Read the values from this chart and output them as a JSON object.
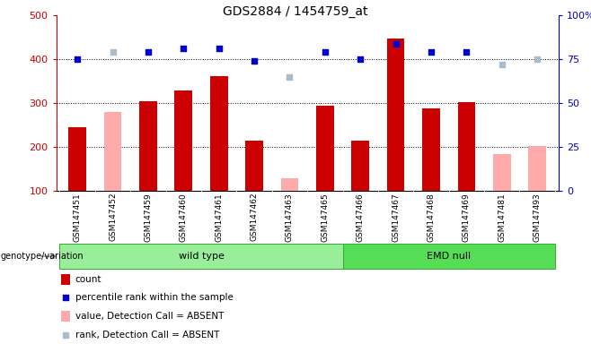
{
  "title": "GDS2884 / 1454759_at",
  "samples": [
    "GSM147451",
    "GSM147452",
    "GSM147459",
    "GSM147460",
    "GSM147461",
    "GSM147462",
    "GSM147463",
    "GSM147465",
    "GSM147466",
    "GSM147467",
    "GSM147468",
    "GSM147469",
    "GSM147481",
    "GSM147493"
  ],
  "count_values": [
    245,
    null,
    305,
    330,
    362,
    215,
    null,
    295,
    215,
    447,
    288,
    302,
    null,
    null
  ],
  "count_absent": [
    null,
    280,
    null,
    null,
    null,
    null,
    128,
    null,
    null,
    null,
    null,
    null,
    183,
    202
  ],
  "percentile_rank": [
    75,
    null,
    79,
    81,
    81,
    74,
    null,
    79,
    75,
    84,
    79,
    79,
    null,
    null
  ],
  "rank_absent": [
    null,
    79,
    null,
    null,
    null,
    null,
    65,
    null,
    null,
    null,
    null,
    null,
    72,
    75
  ],
  "group_wt_indices": [
    0,
    7
  ],
  "group_emd_indices": [
    8,
    13
  ],
  "ylim_left": [
    100,
    500
  ],
  "ylim_right": [
    0,
    100
  ],
  "yticks_left": [
    100,
    200,
    300,
    400,
    500
  ],
  "yticks_right": [
    0,
    25,
    50,
    75,
    100
  ],
  "left_color": "#cc0000",
  "right_color": "#0000cc",
  "bar_width": 0.5,
  "count_color": "#cc0000",
  "count_absent_color": "#ffaaaa",
  "rank_color": "#0000cc",
  "rank_absent_color": "#aabbcc",
  "bg_gray": "#cccccc",
  "wt_color": "#99ee99",
  "emd_color": "#55dd55",
  "grid_dotted": [
    200,
    300,
    400
  ],
  "legend_items": [
    {
      "label": "count",
      "color": "#cc0000",
      "type": "rect"
    },
    {
      "label": "percentile rank within the sample",
      "color": "#0000cc",
      "type": "square"
    },
    {
      "label": "value, Detection Call = ABSENT",
      "color": "#ffaaaa",
      "type": "rect"
    },
    {
      "label": "rank, Detection Call = ABSENT",
      "color": "#aabbcc",
      "type": "square"
    }
  ]
}
